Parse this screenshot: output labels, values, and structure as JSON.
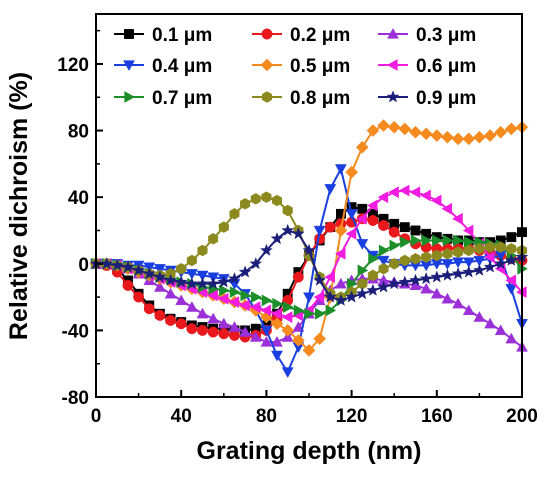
{
  "chart_data": {
    "type": "line",
    "xlabel": "Grating depth (nm)",
    "ylabel": "Relative dichroism (%)",
    "xlim": [
      0,
      200
    ],
    "ylim": [
      -80,
      150
    ],
    "xticks": [
      0,
      40,
      80,
      120,
      160,
      200
    ],
    "yticks": [
      -80,
      -40,
      0,
      40,
      80,
      120
    ],
    "xtick_labels": [
      "0",
      "40",
      "80",
      "120",
      "160",
      "200"
    ],
    "ytick_labels": [
      "-80",
      "-40",
      "0",
      "40",
      "80",
      "120"
    ],
    "grid": false,
    "legend_position": "top",
    "x": [
      0,
      5,
      10,
      15,
      20,
      25,
      30,
      35,
      40,
      45,
      50,
      55,
      60,
      65,
      70,
      75,
      80,
      85,
      90,
      95,
      100,
      105,
      110,
      115,
      120,
      125,
      130,
      135,
      140,
      145,
      150,
      155,
      160,
      165,
      170,
      175,
      180,
      185,
      190,
      195,
      200
    ],
    "series": [
      {
        "name": "0.1 μm",
        "color": "#000000",
        "marker": "square",
        "values": [
          0,
          0,
          -3,
          -10,
          -18,
          -25,
          -30,
          -33,
          -35,
          -37,
          -38,
          -39,
          -39,
          -40,
          -40,
          -39,
          -37,
          -30,
          -18,
          -5,
          5,
          14,
          22,
          30,
          34,
          33,
          30,
          27,
          24,
          22,
          20,
          18,
          16,
          15,
          14,
          14,
          13,
          13,
          14,
          16,
          19
        ]
      },
      {
        "name": "0.2 μm",
        "color": "#e8181d",
        "marker": "circle",
        "values": [
          0,
          -1,
          -5,
          -13,
          -20,
          -27,
          -31,
          -34,
          -36,
          -39,
          -40,
          -41,
          -42,
          -43,
          -44,
          -43,
          -40,
          -33,
          -22,
          -8,
          5,
          15,
          22,
          24,
          25,
          27,
          26,
          23,
          19,
          15,
          12,
          10,
          9,
          9,
          9,
          9,
          8,
          7,
          5,
          3,
          2
        ]
      },
      {
        "name": "0.3 μm",
        "color": "#9b30d9",
        "marker": "triangle-up",
        "values": [
          0,
          0,
          -1,
          -3,
          -6,
          -10,
          -14,
          -18,
          -22,
          -26,
          -30,
          -33,
          -36,
          -38,
          -41,
          -44,
          -47,
          -47,
          -44,
          -38,
          -30,
          -22,
          -16,
          -12,
          -10,
          -9,
          -9,
          -10,
          -11,
          -12,
          -13,
          -15,
          -18,
          -21,
          -24,
          -28,
          -32,
          -36,
          -40,
          -45,
          -50
        ]
      },
      {
        "name": "0.4 μm",
        "color": "#1a3fe0",
        "marker": "triangle-down",
        "values": [
          0,
          0,
          0,
          -1,
          -1,
          -2,
          -3,
          -4,
          -5,
          -6,
          -7,
          -8,
          -9,
          -12,
          -18,
          -28,
          -40,
          -55,
          -65,
          -50,
          -20,
          20,
          45,
          57,
          30,
          12,
          5,
          2,
          0,
          -1,
          -1,
          -1,
          0,
          0,
          1,
          1,
          2,
          3,
          5,
          -15,
          -36
        ]
      },
      {
        "name": "0.5 μm",
        "color": "#f58a1f",
        "marker": "diamond",
        "values": [
          0,
          0,
          -1,
          -3,
          -5,
          -7,
          -9,
          -11,
          -13,
          -15,
          -17,
          -19,
          -21,
          -23,
          -25,
          -28,
          -32,
          -36,
          -40,
          -46,
          -52,
          -45,
          -20,
          20,
          55,
          70,
          80,
          83,
          82,
          81,
          79,
          78,
          77,
          76,
          75,
          75,
          76,
          77,
          79,
          81,
          82
        ]
      },
      {
        "name": "0.6 μm",
        "color": "#f01de0",
        "marker": "triangle-left",
        "values": [
          0,
          0,
          -1,
          -3,
          -5,
          -7,
          -9,
          -11,
          -13,
          -15,
          -17,
          -19,
          -21,
          -23,
          -25,
          -26,
          -28,
          -30,
          -32,
          -31,
          -28,
          -20,
          -8,
          6,
          18,
          27,
          35,
          40,
          43,
          44,
          43,
          41,
          38,
          33,
          27,
          20,
          12,
          4,
          -3,
          -10,
          -17
        ]
      },
      {
        "name": "0.7 μm",
        "color": "#1c8f2a",
        "marker": "triangle-right",
        "values": [
          0,
          0,
          -1,
          -2,
          -4,
          -6,
          -8,
          -9,
          -11,
          -12,
          -14,
          -15,
          -16,
          -17,
          -19,
          -20,
          -22,
          -24,
          -26,
          -28,
          -30,
          -30,
          -28,
          -22,
          -12,
          -4,
          3,
          8,
          11,
          13,
          14,
          14,
          14,
          14,
          14,
          13,
          13,
          12,
          11,
          5,
          -3
        ]
      },
      {
        "name": "0.8 μm",
        "color": "#8c8a1e",
        "marker": "hexagon",
        "values": [
          0,
          0,
          -1,
          -2,
          -4,
          -6,
          -7,
          -6,
          -3,
          2,
          8,
          15,
          22,
          30,
          36,
          39,
          40,
          38,
          32,
          20,
          5,
          -8,
          -18,
          -20,
          -17,
          -12,
          -7,
          -3,
          0,
          2,
          3,
          4,
          5,
          6,
          7,
          8,
          9,
          10,
          10,
          9,
          8
        ]
      },
      {
        "name": "0.9 μm",
        "color": "#1b1f7a",
        "marker": "star",
        "values": [
          0,
          0,
          -1,
          -2,
          -4,
          -6,
          -8,
          -10,
          -11,
          -12,
          -12,
          -12,
          -11,
          -9,
          -5,
          0,
          8,
          15,
          20,
          18,
          8,
          -10,
          -20,
          -22,
          -20,
          -18,
          -16,
          -14,
          -12,
          -11,
          -10,
          -9,
          -8,
          -7,
          -6,
          -5,
          -4,
          -2,
          0,
          2,
          4
        ]
      }
    ]
  }
}
